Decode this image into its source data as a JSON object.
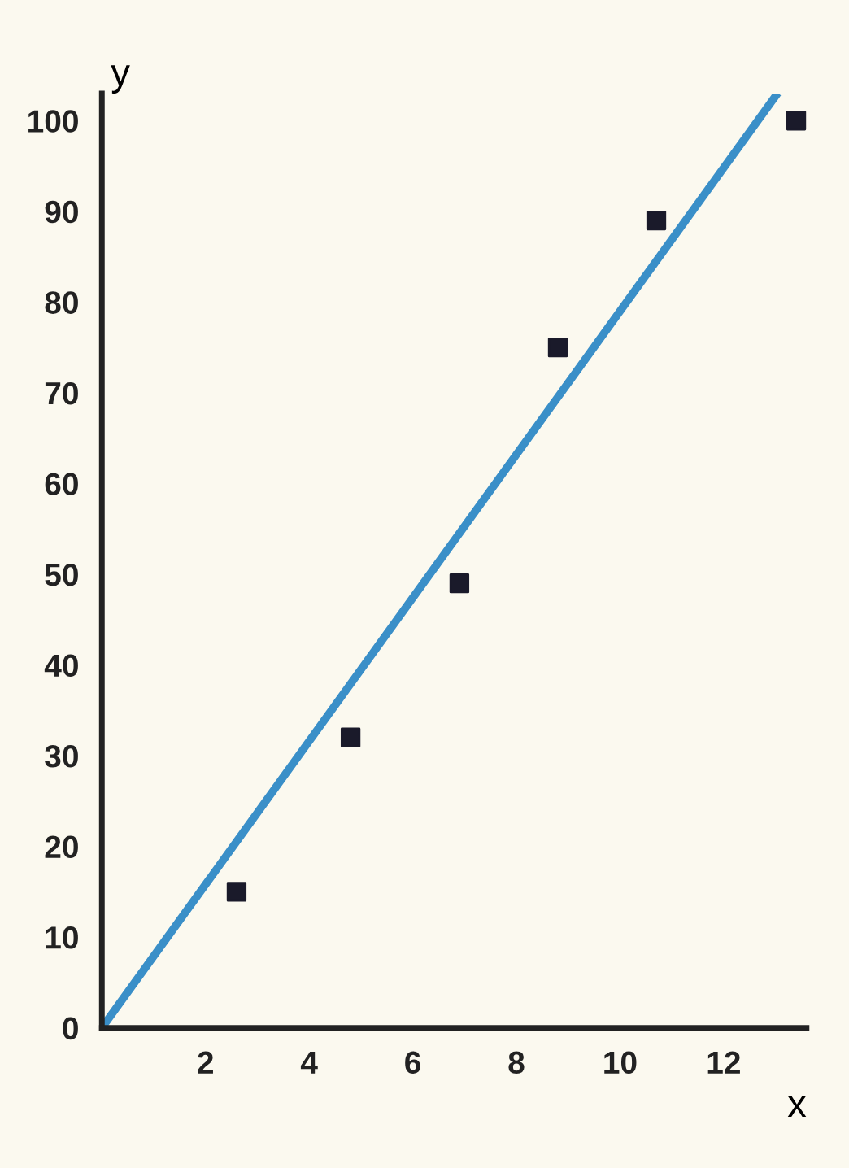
{
  "chart_data": {
    "type": "scatter",
    "xlabel": "x",
    "ylabel": "y",
    "xlim": [
      0,
      13.6
    ],
    "ylim": [
      0,
      103
    ],
    "xticks": [
      2,
      4,
      6,
      8,
      10,
      12
    ],
    "yticks": [
      0,
      10,
      20,
      30,
      40,
      50,
      60,
      70,
      80,
      90,
      100
    ],
    "grid": false,
    "legend": false,
    "series": [
      {
        "color": "#1a1a2a",
        "marker": "square",
        "x": [
          2.6,
          4.8,
          6.9,
          8.8,
          10.7,
          13.4
        ],
        "values": [
          15,
          32,
          49,
          75,
          89,
          100
        ]
      },
      {
        "type": "line",
        "color": "#3a8fc8",
        "marker": "none",
        "line_style": "solid",
        "x": [
          0,
          13.0
        ],
        "values": [
          0,
          102.7
        ]
      }
    ]
  }
}
